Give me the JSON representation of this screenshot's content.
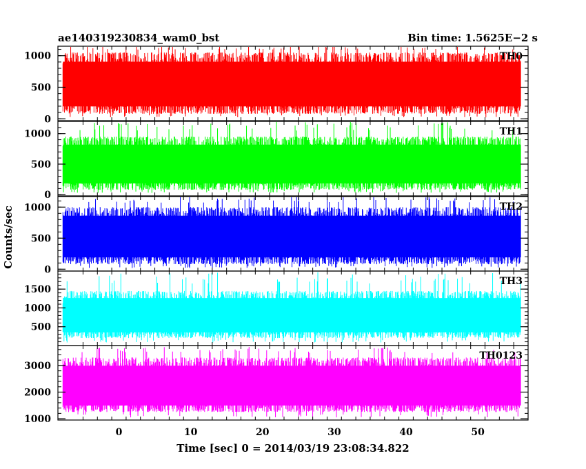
{
  "header": {
    "left_title": "ae140319230834_wam0_bst",
    "right_title": "Bin time: 1.5625E−2 s"
  },
  "chart_data": {
    "type": "line",
    "shared_x": {
      "xlabel": "Time [sec] 0 = 2014/03/19 23:08:34.822",
      "xlim": [
        -8.5,
        57
      ],
      "xticks": [
        0,
        10,
        20,
        30,
        40,
        50
      ],
      "data_range": [
        -7.8,
        56.0
      ]
    },
    "ylabel": "Counts/sec",
    "panels": [
      {
        "name": "TH0",
        "color": "#ff0000",
        "ylim": [
          -30,
          1150
        ],
        "yticks": [
          0,
          500,
          1000
        ],
        "envelope_typical": [
          80,
          1050
        ],
        "envelope_extreme": [
          20,
          1160
        ]
      },
      {
        "name": "TH1",
        "color": "#00ff00",
        "ylim": [
          -20,
          1200
        ],
        "yticks": [
          0,
          500,
          1000
        ],
        "envelope_typical": [
          80,
          950
        ],
        "envelope_extreme": [
          30,
          1200
        ]
      },
      {
        "name": "TH2",
        "color": "#0000ff",
        "ylim": [
          -30,
          1170
        ],
        "yticks": [
          0,
          500,
          1000
        ],
        "envelope_typical": [
          80,
          1000
        ],
        "envelope_extreme": [
          20,
          1180
        ]
      },
      {
        "name": "TH3",
        "color": "#00ffff",
        "ylim": [
          0,
          1980
        ],
        "yticks": [
          500,
          1000,
          1500
        ],
        "envelope_typical": [
          200,
          1450
        ],
        "envelope_extreme": [
          80,
          1950
        ]
      },
      {
        "name": "TH0123",
        "color": "#ff00ff",
        "ylim": [
          950,
          3750
        ],
        "yticks": [
          1000,
          2000,
          3000
        ],
        "envelope_typical": [
          1250,
          3300
        ],
        "envelope_extreme": [
          1050,
          3700
        ]
      }
    ]
  }
}
